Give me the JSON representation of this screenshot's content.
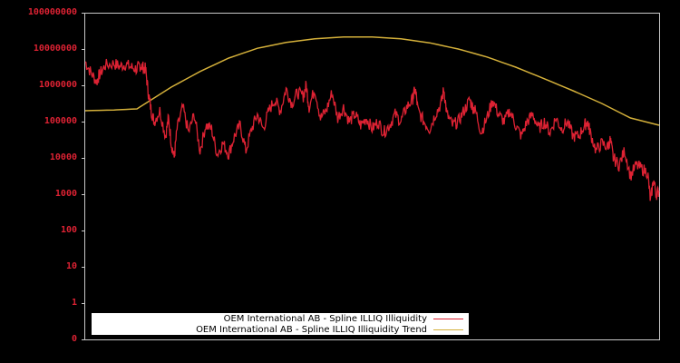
{
  "chart_data": {
    "type": "line",
    "title": "",
    "xlabel": "",
    "ylabel": "",
    "yscale": "log",
    "y_tick_labels": [
      "100000000",
      "10000000",
      "1000000",
      "100000",
      "10000",
      "1000",
      "100",
      "10",
      "1",
      "0"
    ],
    "ylim": [
      0,
      100000000
    ],
    "grid": false,
    "legend_position": "bottom-left inside",
    "colors": {
      "background": "#000000",
      "frame": "#c8c8c8",
      "tick_label": "#dd2233",
      "series_1": "#dd2233",
      "series_2": "#d4b03a"
    },
    "series": [
      {
        "name": "OEM International AB - Spline ILLIQ Illiquidity",
        "color": "#dd2233",
        "note": "x as fraction of plot width (0..1), y as log10 value",
        "points": [
          [
            0.0,
            6.65
          ],
          [
            0.01,
            6.35
          ],
          [
            0.02,
            6.1
          ],
          [
            0.025,
            6.3
          ],
          [
            0.035,
            6.55
          ],
          [
            0.05,
            6.6
          ],
          [
            0.06,
            6.52
          ],
          [
            0.07,
            6.58
          ],
          [
            0.08,
            6.5
          ],
          [
            0.09,
            6.45
          ],
          [
            0.095,
            6.55
          ],
          [
            0.1,
            6.5
          ],
          [
            0.105,
            6.45
          ],
          [
            0.11,
            5.8
          ],
          [
            0.115,
            5.3
          ],
          [
            0.12,
            5.0
          ],
          [
            0.13,
            5.3
          ],
          [
            0.14,
            4.6
          ],
          [
            0.145,
            5.1
          ],
          [
            0.15,
            4.4
          ],
          [
            0.155,
            4.0
          ],
          [
            0.16,
            4.8
          ],
          [
            0.17,
            5.4
          ],
          [
            0.18,
            4.7
          ],
          [
            0.19,
            5.2
          ],
          [
            0.2,
            4.2
          ],
          [
            0.21,
            4.9
          ],
          [
            0.22,
            4.8
          ],
          [
            0.23,
            4.1
          ],
          [
            0.24,
            4.4
          ],
          [
            0.25,
            4.1
          ],
          [
            0.26,
            4.6
          ],
          [
            0.27,
            4.9
          ],
          [
            0.28,
            4.2
          ],
          [
            0.29,
            4.8
          ],
          [
            0.3,
            5.2
          ],
          [
            0.31,
            4.8
          ],
          [
            0.32,
            5.3
          ],
          [
            0.33,
            5.6
          ],
          [
            0.34,
            5.3
          ],
          [
            0.35,
            5.9
          ],
          [
            0.36,
            5.5
          ],
          [
            0.37,
            5.8
          ],
          [
            0.38,
            5.7
          ],
          [
            0.385,
            6.0
          ],
          [
            0.39,
            5.4
          ],
          [
            0.4,
            5.9
          ],
          [
            0.41,
            5.1
          ],
          [
            0.42,
            5.3
          ],
          [
            0.43,
            5.8
          ],
          [
            0.44,
            5.1
          ],
          [
            0.45,
            5.4
          ],
          [
            0.46,
            5.0
          ],
          [
            0.47,
            5.2
          ],
          [
            0.48,
            4.9
          ],
          [
            0.49,
            5.1
          ],
          [
            0.5,
            4.8
          ],
          [
            0.51,
            5.0
          ],
          [
            0.52,
            4.7
          ],
          [
            0.53,
            4.9
          ],
          [
            0.54,
            5.2
          ],
          [
            0.55,
            5.0
          ],
          [
            0.56,
            5.4
          ],
          [
            0.57,
            5.6
          ],
          [
            0.575,
            5.9
          ],
          [
            0.58,
            5.3
          ],
          [
            0.59,
            5.0
          ],
          [
            0.6,
            4.8
          ],
          [
            0.61,
            5.2
          ],
          [
            0.62,
            5.5
          ],
          [
            0.625,
            5.9
          ],
          [
            0.63,
            5.2
          ],
          [
            0.64,
            4.9
          ],
          [
            0.65,
            5.0
          ],
          [
            0.66,
            5.3
          ],
          [
            0.67,
            5.6
          ],
          [
            0.675,
            5.4
          ],
          [
            0.68,
            5.3
          ],
          [
            0.69,
            4.7
          ],
          [
            0.7,
            5.1
          ],
          [
            0.71,
            5.6
          ],
          [
            0.72,
            5.2
          ],
          [
            0.73,
            5.0
          ],
          [
            0.74,
            5.3
          ],
          [
            0.75,
            4.9
          ],
          [
            0.76,
            4.6
          ],
          [
            0.77,
            5.0
          ],
          [
            0.78,
            5.2
          ],
          [
            0.79,
            4.8
          ],
          [
            0.8,
            5.0
          ],
          [
            0.81,
            4.7
          ],
          [
            0.82,
            5.1
          ],
          [
            0.83,
            4.8
          ],
          [
            0.84,
            5.0
          ],
          [
            0.85,
            4.6
          ],
          [
            0.86,
            4.6
          ],
          [
            0.87,
            4.9
          ],
          [
            0.875,
            5.0
          ],
          [
            0.88,
            4.7
          ],
          [
            0.89,
            4.2
          ],
          [
            0.9,
            4.4
          ],
          [
            0.91,
            4.3
          ],
          [
            0.915,
            4.5
          ],
          [
            0.92,
            4.0
          ],
          [
            0.93,
            3.8
          ],
          [
            0.94,
            4.2
          ],
          [
            0.95,
            3.5
          ],
          [
            0.96,
            3.8
          ],
          [
            0.97,
            3.7
          ],
          [
            0.98,
            3.6
          ],
          [
            0.985,
            2.8
          ],
          [
            0.99,
            3.4
          ],
          [
            0.995,
            3.0
          ],
          [
            1.0,
            3.1
          ]
        ]
      },
      {
        "name": "OEM International AB - Spline ILLIQ Illiquidity Trend",
        "color": "#d4b03a",
        "note": "x as fraction of plot width (0..1), y as log10 value",
        "points": [
          [
            0.0,
            5.3
          ],
          [
            0.05,
            5.32
          ],
          [
            0.09,
            5.35
          ],
          [
            0.1,
            5.45
          ],
          [
            0.15,
            5.95
          ],
          [
            0.2,
            6.38
          ],
          [
            0.25,
            6.75
          ],
          [
            0.3,
            7.02
          ],
          [
            0.35,
            7.18
          ],
          [
            0.4,
            7.28
          ],
          [
            0.45,
            7.33
          ],
          [
            0.5,
            7.33
          ],
          [
            0.55,
            7.28
          ],
          [
            0.6,
            7.17
          ],
          [
            0.65,
            7.0
          ],
          [
            0.7,
            6.78
          ],
          [
            0.75,
            6.5
          ],
          [
            0.8,
            6.18
          ],
          [
            0.85,
            5.85
          ],
          [
            0.9,
            5.5
          ],
          [
            0.95,
            5.1
          ],
          [
            1.0,
            4.9
          ]
        ]
      }
    ]
  },
  "y_axis": {
    "ticks": [
      {
        "label": "100000000",
        "log": 8
      },
      {
        "label": "10000000",
        "log": 7
      },
      {
        "label": "1000000",
        "log": 6
      },
      {
        "label": "100000",
        "log": 5
      },
      {
        "label": "10000",
        "log": 4
      },
      {
        "label": "1000",
        "log": 3
      },
      {
        "label": "100",
        "log": 2
      },
      {
        "label": "10",
        "log": 1
      },
      {
        "label": "1",
        "log": 0
      },
      {
        "label": "0",
        "log": -1
      }
    ]
  },
  "legend": {
    "items": [
      {
        "label": "OEM International AB - Spline ILLIQ Illiquidity",
        "color": "#dd2233"
      },
      {
        "label": "OEM International AB - Spline ILLIQ Illiquidity Trend",
        "color": "#d4b03a"
      }
    ]
  }
}
